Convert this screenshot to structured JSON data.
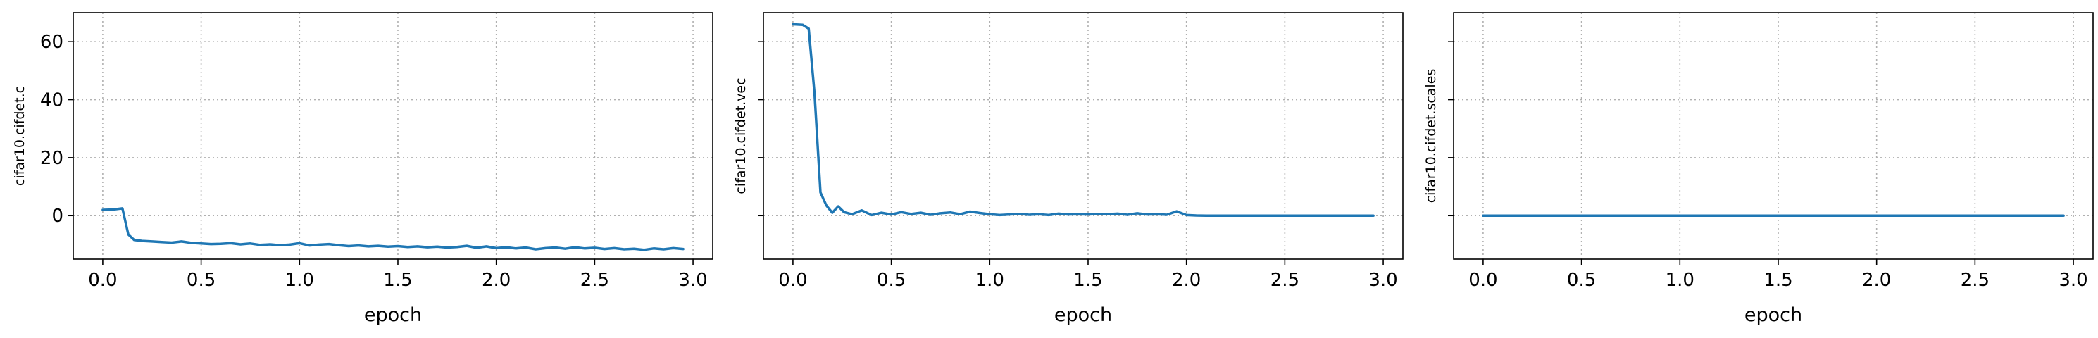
{
  "chart_data": [
    {
      "type": "line",
      "xlabel": "epoch",
      "ylabel": "cifar10.cifdet.c",
      "xlim": [
        -0.15,
        3.1
      ],
      "ylim": [
        -15,
        70
      ],
      "xticks": [
        "0.0",
        "0.5",
        "1.0",
        "1.5",
        "2.0",
        "2.5",
        "3.0"
      ],
      "yticks": [
        "0",
        "20",
        "40",
        "60"
      ],
      "grid": true,
      "color": "#1f77b4",
      "series": [
        {
          "x": [
            0.0,
            0.05,
            0.1,
            0.13,
            0.16,
            0.2,
            0.25,
            0.3,
            0.35,
            0.4,
            0.45,
            0.5,
            0.55,
            0.6,
            0.65,
            0.7,
            0.75,
            0.8,
            0.85,
            0.9,
            0.95,
            1.0,
            1.05,
            1.1,
            1.15,
            1.2,
            1.25,
            1.3,
            1.35,
            1.4,
            1.45,
            1.5,
            1.55,
            1.6,
            1.65,
            1.7,
            1.75,
            1.8,
            1.85,
            1.9,
            1.95,
            2.0,
            2.05,
            2.1,
            2.15,
            2.2,
            2.25,
            2.3,
            2.35,
            2.4,
            2.45,
            2.5,
            2.55,
            2.6,
            2.65,
            2.7,
            2.75,
            2.8,
            2.85,
            2.9,
            2.95
          ],
          "y": [
            2.0,
            2.1,
            2.5,
            -6.5,
            -8.4,
            -8.7,
            -8.9,
            -9.1,
            -9.3,
            -8.9,
            -9.4,
            -9.6,
            -9.8,
            -9.7,
            -9.5,
            -9.9,
            -9.6,
            -10.1,
            -9.9,
            -10.2,
            -10.0,
            -9.5,
            -10.3,
            -10.0,
            -9.8,
            -10.2,
            -10.5,
            -10.3,
            -10.6,
            -10.4,
            -10.7,
            -10.5,
            -10.8,
            -10.6,
            -10.9,
            -10.7,
            -11.0,
            -10.8,
            -10.4,
            -11.1,
            -10.6,
            -11.2,
            -10.9,
            -11.3,
            -11.0,
            -11.6,
            -11.2,
            -11.0,
            -11.4,
            -10.9,
            -11.3,
            -11.1,
            -11.5,
            -11.2,
            -11.6,
            -11.4,
            -11.8,
            -11.3,
            -11.6,
            -11.2,
            -11.5
          ]
        }
      ]
    },
    {
      "type": "line",
      "xlabel": "epoch",
      "ylabel": "cifar10.cifdet.vec",
      "xlim": [
        -0.15,
        3.1
      ],
      "ylim": [
        -15,
        70
      ],
      "xticks": [
        "0.0",
        "0.5",
        "1.0",
        "1.5",
        "2.0",
        "2.5",
        "3.0"
      ],
      "yticks": [
        "",
        "",
        "",
        ""
      ],
      "grid": true,
      "color": "#1f77b4",
      "series": [
        {
          "x": [
            0.0,
            0.05,
            0.08,
            0.11,
            0.14,
            0.17,
            0.2,
            0.23,
            0.26,
            0.3,
            0.35,
            0.4,
            0.45,
            0.5,
            0.55,
            0.6,
            0.65,
            0.7,
            0.75,
            0.8,
            0.85,
            0.9,
            0.95,
            1.0,
            1.05,
            1.1,
            1.15,
            1.2,
            1.25,
            1.3,
            1.35,
            1.4,
            1.45,
            1.5,
            1.55,
            1.6,
            1.65,
            1.7,
            1.75,
            1.8,
            1.85,
            1.9,
            1.95,
            2.0,
            2.05,
            2.1,
            2.2,
            2.3,
            2.4,
            2.5,
            2.6,
            2.7,
            2.8,
            2.9,
            2.95
          ],
          "y": [
            66.0,
            65.8,
            64.5,
            42.0,
            8.0,
            3.5,
            1.0,
            3.2,
            1.2,
            0.5,
            1.8,
            0.2,
            1.0,
            0.4,
            1.2,
            0.6,
            1.0,
            0.3,
            0.8,
            1.1,
            0.5,
            1.4,
            0.9,
            0.5,
            0.2,
            0.4,
            0.6,
            0.3,
            0.5,
            0.2,
            0.7,
            0.4,
            0.5,
            0.4,
            0.6,
            0.5,
            0.7,
            0.3,
            0.8,
            0.4,
            0.5,
            0.3,
            1.5,
            0.2,
            0.05,
            0.0,
            0.0,
            0.0,
            0.0,
            0.0,
            0.0,
            0.0,
            0.0,
            0.0,
            0.0
          ]
        }
      ]
    },
    {
      "type": "line",
      "xlabel": "epoch",
      "ylabel": "cifar10.cifdet.scales",
      "xlim": [
        -0.15,
        3.1
      ],
      "ylim": [
        -15,
        70
      ],
      "xticks": [
        "0.0",
        "0.5",
        "1.0",
        "1.5",
        "2.0",
        "2.5",
        "3.0"
      ],
      "yticks": [
        "",
        "",
        "",
        ""
      ],
      "grid": true,
      "color": "#1f77b4",
      "series": [
        {
          "x": [
            0.0,
            0.5,
            1.0,
            1.5,
            2.0,
            2.5,
            2.95
          ],
          "y": [
            0.0,
            0.0,
            0.0,
            0.0,
            0.0,
            0.0,
            0.0
          ]
        }
      ]
    }
  ]
}
